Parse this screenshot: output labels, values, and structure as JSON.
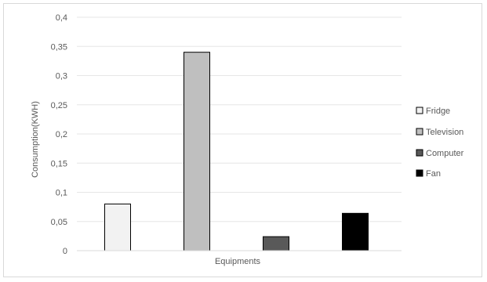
{
  "chart_data": {
    "type": "bar",
    "categories": [
      "Fridge",
      "Television",
      "Computer",
      "Fan"
    ],
    "values": [
      0.08,
      0.34,
      0.024,
      0.064
    ],
    "colors": [
      "#f2f2f2",
      "#bfbfbf",
      "#595959",
      "#000000"
    ],
    "xlabel": "Equipments",
    "ylabel": "Consumption(KWH)",
    "ylim": [
      0,
      0.4
    ],
    "yticks": [
      "0",
      "0,05",
      "0,1",
      "0,15",
      "0,2",
      "0,25",
      "0,3",
      "0,35",
      "0,4"
    ],
    "grid": true,
    "legend": {
      "position": "right",
      "items": [
        "Fridge",
        "Television",
        "Computer",
        "Fan"
      ]
    }
  }
}
